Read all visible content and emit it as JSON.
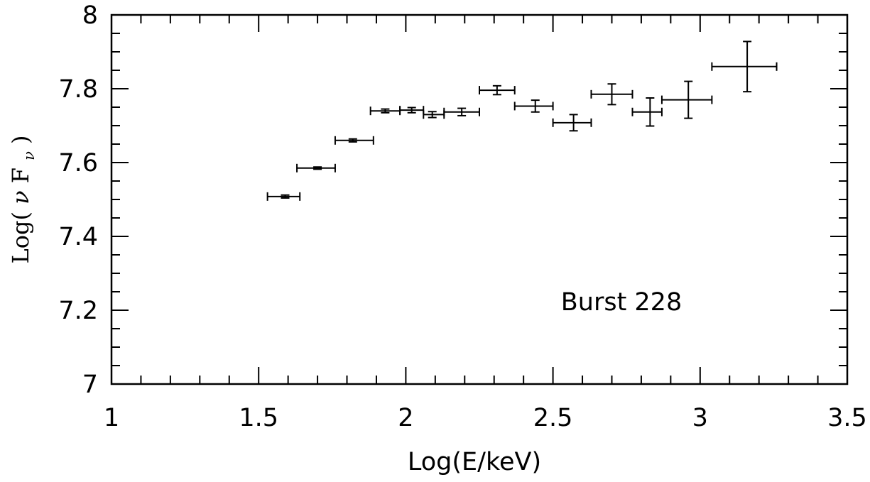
{
  "chart_data": {
    "type": "scatter",
    "title": "",
    "xlabel": "Log(E/keV)",
    "ylabel": {
      "prefix": "Log(",
      "nu": "ν",
      "F": "F",
      "sub": "ν",
      "suffix": ")"
    },
    "annotation": "Burst 228",
    "xlim": [
      1,
      3.5
    ],
    "ylim": [
      7,
      8
    ],
    "x_ticks": [
      1,
      1.5,
      2,
      2.5,
      3,
      3.5
    ],
    "x_tick_labels": [
      "1",
      "1.5",
      "2",
      "2.5",
      "3",
      "3.5"
    ],
    "y_ticks": [
      7,
      7.2,
      7.4,
      7.6,
      7.8,
      8
    ],
    "y_tick_labels": [
      "7",
      "7.2",
      "7.4",
      "7.6",
      "7.8",
      "8"
    ],
    "x_minor_step": 0.1,
    "y_minor_step": 0.05,
    "grid": false,
    "legend": "none",
    "series": [
      {
        "points": [
          {
            "x": 1.59,
            "y": 7.508,
            "x_lo": 1.53,
            "x_hi": 1.64,
            "y_err": 0.004
          },
          {
            "x": 1.7,
            "y": 7.585,
            "x_lo": 1.63,
            "x_hi": 1.76,
            "y_err": 0.003
          },
          {
            "x": 1.82,
            "y": 7.66,
            "x_lo": 1.76,
            "x_hi": 1.89,
            "y_err": 0.004
          },
          {
            "x": 1.93,
            "y": 7.74,
            "x_lo": 1.88,
            "x_hi": 1.98,
            "y_err": 0.005
          },
          {
            "x": 2.02,
            "y": 7.742,
            "x_lo": 1.98,
            "x_hi": 2.06,
            "y_err": 0.007
          },
          {
            "x": 2.09,
            "y": 7.73,
            "x_lo": 2.06,
            "x_hi": 2.13,
            "y_err": 0.008
          },
          {
            "x": 2.19,
            "y": 7.737,
            "x_lo": 2.13,
            "x_hi": 2.25,
            "y_err": 0.01
          },
          {
            "x": 2.31,
            "y": 7.796,
            "x_lo": 2.25,
            "x_hi": 2.37,
            "y_err": 0.012
          },
          {
            "x": 2.44,
            "y": 7.753,
            "x_lo": 2.37,
            "x_hi": 2.5,
            "y_err": 0.016
          },
          {
            "x": 2.57,
            "y": 7.708,
            "x_lo": 2.5,
            "x_hi": 2.63,
            "y_err": 0.022
          },
          {
            "x": 2.7,
            "y": 7.785,
            "x_lo": 2.63,
            "x_hi": 2.77,
            "y_err": 0.028
          },
          {
            "x": 2.83,
            "y": 7.737,
            "x_lo": 2.77,
            "x_hi": 2.87,
            "y_err": 0.038
          },
          {
            "x": 2.96,
            "y": 7.77,
            "x_lo": 2.87,
            "x_hi": 3.04,
            "y_err": 0.05
          },
          {
            "x": 3.16,
            "y": 7.86,
            "x_lo": 3.04,
            "x_hi": 3.26,
            "y_err": 0.068
          }
        ]
      }
    ]
  }
}
